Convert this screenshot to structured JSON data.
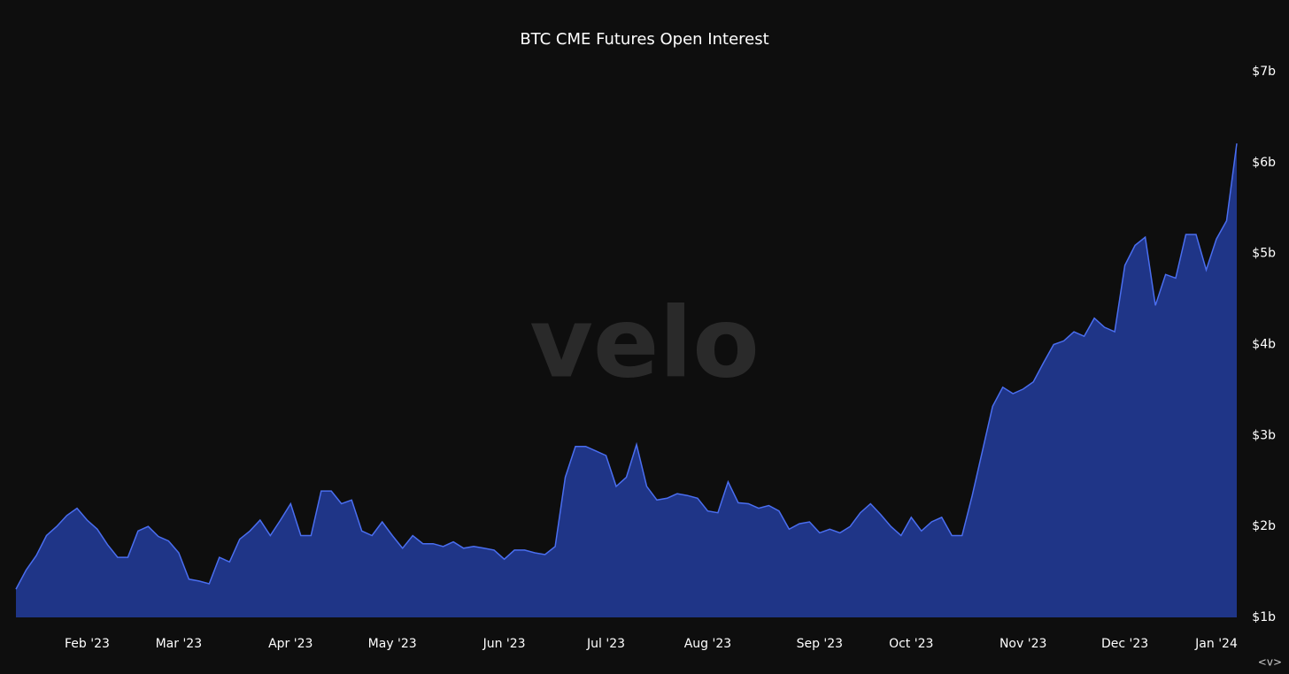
{
  "chart_data": {
    "type": "area",
    "title": "BTC CME Futures Open Interest",
    "watermark": "velo",
    "corner_mark": "<v>",
    "categories": [
      null,
      null,
      null,
      null,
      null,
      null,
      null,
      "Feb '23",
      null,
      null,
      null,
      null,
      null,
      null,
      null,
      null,
      "Mar '23",
      null,
      null,
      null,
      null,
      null,
      null,
      null,
      null,
      null,
      null,
      "Apr '23",
      null,
      null,
      null,
      null,
      null,
      null,
      null,
      null,
      null,
      "May '23",
      null,
      null,
      null,
      null,
      null,
      null,
      null,
      null,
      null,
      null,
      "Jun '23",
      null,
      null,
      null,
      null,
      null,
      null,
      null,
      null,
      null,
      "Jul '23",
      null,
      null,
      null,
      null,
      null,
      null,
      null,
      null,
      null,
      "Aug '23",
      null,
      null,
      null,
      null,
      null,
      null,
      null,
      null,
      null,
      null,
      "Sep '23",
      null,
      null,
      null,
      null,
      null,
      null,
      null,
      null,
      "Oct '23",
      null,
      null,
      null,
      null,
      null,
      null,
      null,
      null,
      null,
      null,
      "Nov '23",
      null,
      null,
      null,
      null,
      null,
      null,
      null,
      null,
      null,
      "Dec '23",
      null,
      null,
      null,
      null,
      null,
      null,
      null,
      null,
      "Jan '24",
      null,
      null
    ],
    "series": [
      {
        "name": "Open Interest",
        "color": "#4a6ef0",
        "fill": "#1f3587",
        "values": [
          1.31,
          1.52,
          1.68,
          1.9,
          2.0,
          2.12,
          2.2,
          2.07,
          1.97,
          1.8,
          1.66,
          1.66,
          1.95,
          2.0,
          1.89,
          1.84,
          1.71,
          1.42,
          1.4,
          1.37,
          1.66,
          1.61,
          1.86,
          1.95,
          2.07,
          1.9,
          2.07,
          2.25,
          1.9,
          1.9,
          2.39,
          2.39,
          2.25,
          2.29,
          1.95,
          1.9,
          2.05,
          1.9,
          1.76,
          1.9,
          1.81,
          1.81,
          1.78,
          1.83,
          1.76,
          1.78,
          1.76,
          1.74,
          1.64,
          1.74,
          1.74,
          1.71,
          1.69,
          1.78,
          2.54,
          2.88,
          2.88,
          2.83,
          2.78,
          2.44,
          2.54,
          2.9,
          2.44,
          2.29,
          2.31,
          2.36,
          2.34,
          2.31,
          2.17,
          2.15,
          2.49,
          2.26,
          2.25,
          2.2,
          2.23,
          2.17,
          1.97,
          2.03,
          2.05,
          1.93,
          1.97,
          1.93,
          2.0,
          2.15,
          2.25,
          2.13,
          2.0,
          1.9,
          2.1,
          1.95,
          2.05,
          2.1,
          1.9,
          1.9,
          2.34,
          2.83,
          3.32,
          3.53,
          3.46,
          3.51,
          3.59,
          3.8,
          4.0,
          4.04,
          4.14,
          4.09,
          4.29,
          4.19,
          4.14,
          4.87,
          5.09,
          5.18,
          4.43,
          4.77,
          4.73,
          5.21,
          5.21,
          4.82,
          5.16,
          5.36,
          6.21
        ]
      }
    ],
    "ylim": [
      1,
      7
    ],
    "yticks": [
      {
        "value": 1,
        "label": "$1b"
      },
      {
        "value": 2,
        "label": "$2b"
      },
      {
        "value": 3,
        "label": "$3b"
      },
      {
        "value": 4,
        "label": "$4b"
      },
      {
        "value": 5,
        "label": "$5b"
      },
      {
        "value": 6,
        "label": "$6b"
      },
      {
        "value": 7,
        "label": "$7b"
      }
    ],
    "grid": false
  }
}
